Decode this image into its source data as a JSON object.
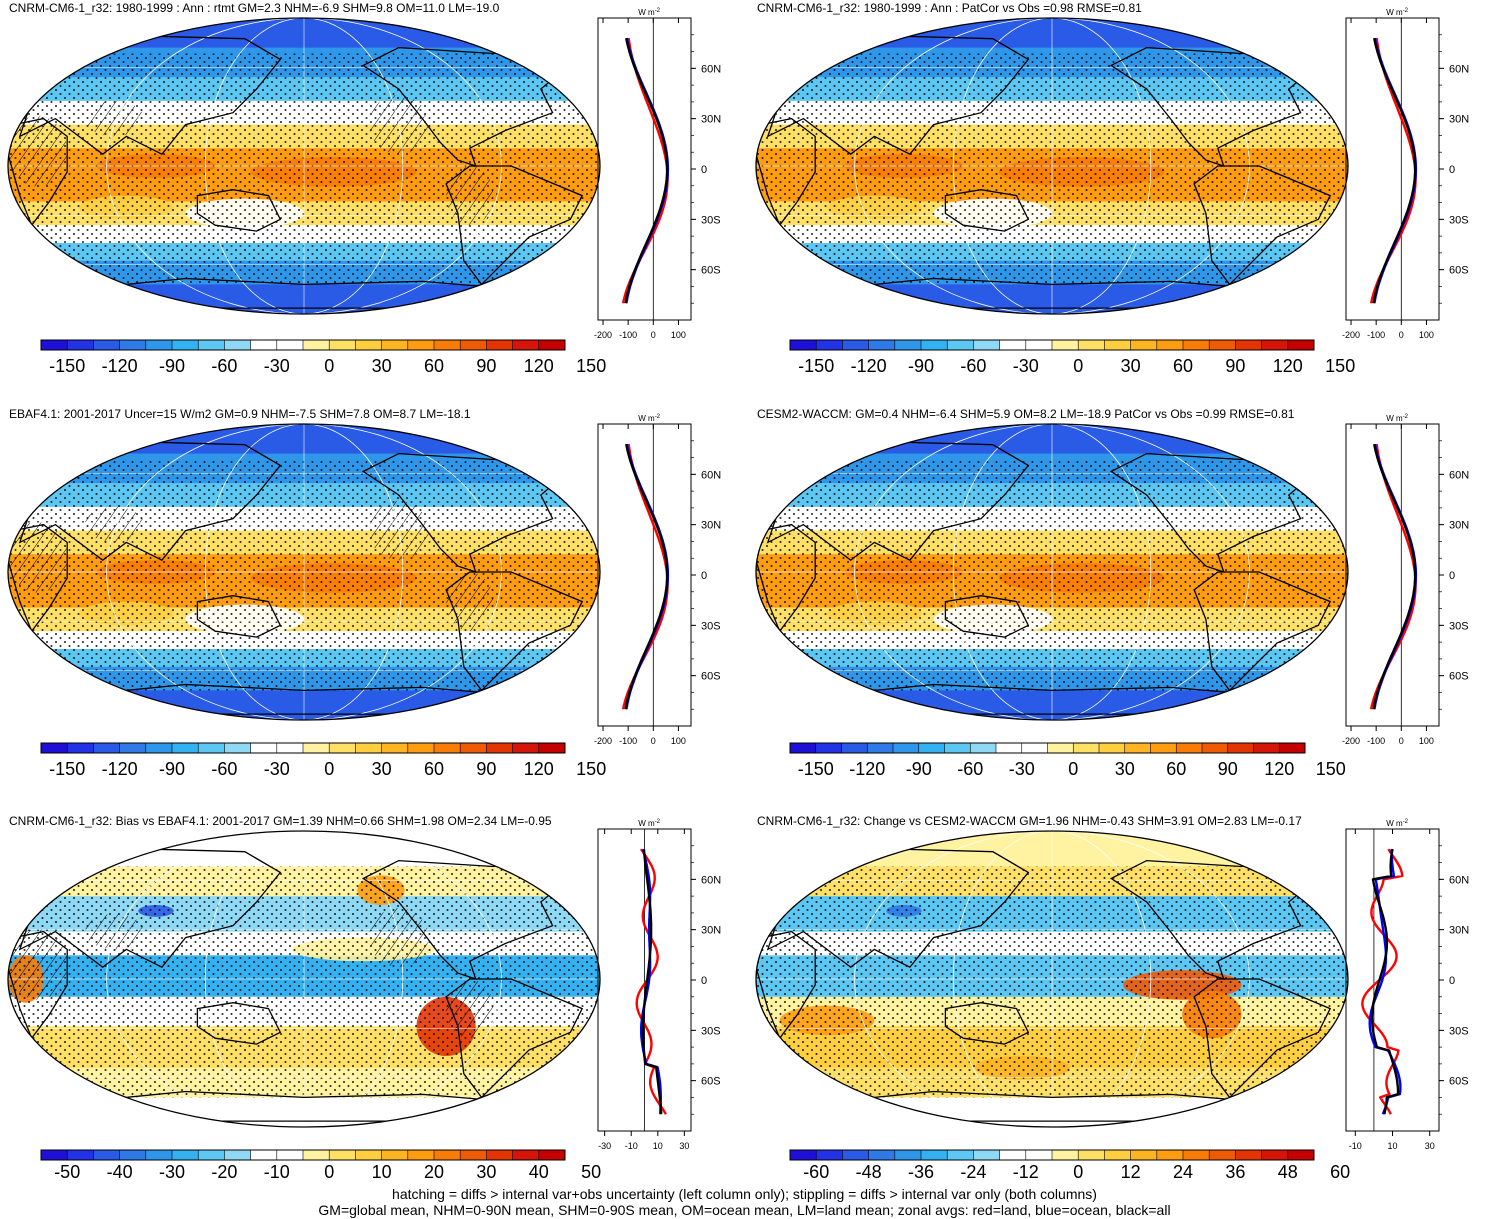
{
  "panels": [
    {
      "id": "p1",
      "title": "CNRM-CM6-1_r32: 1980-1999 : Ann : rtmt GM=2.3 NHM=-6.9 SHM=9.8 OM=11.0 LM=-19.0",
      "mode": "abs",
      "hatched": true,
      "colorbar_ticks": [
        "-150",
        "-120",
        "-90",
        "-60",
        "-30",
        "0",
        "30",
        "60",
        "90",
        "120",
        "150"
      ],
      "zonal_xticks": [
        "-200",
        "-100",
        "0",
        "100"
      ]
    },
    {
      "id": "p2",
      "title": "CNRM-CM6-1_r32: 1980-1999 : Ann : PatCor vs Obs =0.98 RMSE=0.81",
      "mode": "abs",
      "hatched": false,
      "colorbar_ticks": [
        "-150",
        "-120",
        "-90",
        "-60",
        "-30",
        "0",
        "30",
        "60",
        "90",
        "120",
        "150"
      ],
      "zonal_xticks": [
        "-200",
        "-100",
        "0",
        "100"
      ]
    },
    {
      "id": "p3",
      "title": "EBAF4.1: 2001-2017 Uncer=15 W/m2 GM=0.9 NHM=-7.5 SHM=7.8 OM=8.7 LM=-18.1",
      "mode": "abs",
      "hatched": true,
      "colorbar_ticks": [
        "-150",
        "-120",
        "-90",
        "-60",
        "-30",
        "0",
        "30",
        "60",
        "90",
        "120",
        "150"
      ],
      "zonal_xticks": [
        "-200",
        "-100",
        "0",
        "100"
      ]
    },
    {
      "id": "p4",
      "title": "CESM2-WACCM: GM=0.4 NHM=-6.4 SHM=5.9 OM=8.2 LM=-18.9 PatCor vs Obs =0.99 RMSE=0.81",
      "mode": "abs",
      "hatched": false,
      "colorbar_ticks": [
        "-150",
        "-120",
        "-90",
        "-60",
        "-30",
        "0",
        "30",
        "60",
        "90",
        "120",
        "150"
      ],
      "zonal_xticks": [
        "-200",
        "-100",
        "0",
        "100"
      ]
    },
    {
      "id": "p5",
      "title": "CNRM-CM6-1_r32: Bias vs EBAF4.1: 2001-2017 GM=1.39 NHM=0.66 SHM=1.98 OM=2.34 LM=-0.95",
      "mode": "bias",
      "hatched": true,
      "colorbar_ticks": [
        "-50",
        "-40",
        "-30",
        "-20",
        "-10",
        "0",
        "10",
        "20",
        "30",
        "40",
        "50"
      ],
      "zonal_xticks": [
        "-30",
        "-10",
        "10",
        "30"
      ]
    },
    {
      "id": "p6",
      "title": "CNRM-CM6-1_r32: Change vs CESM2-WACCM GM=1.96 NHM=-0.43 SHM=3.91 OM=2.83 LM=-0.17",
      "mode": "change",
      "hatched": false,
      "colorbar_ticks": [
        "-60",
        "-48",
        "-36",
        "-24",
        "-12",
        "0",
        "12",
        "24",
        "36",
        "48",
        "60"
      ],
      "zonal_xticks": [
        "-10",
        "10",
        "30"
      ]
    }
  ],
  "zonal_units": "W m",
  "zonal_units_exp": "-2",
  "lat_labels": [
    "60N",
    "30N",
    "0",
    "30S",
    "60S"
  ],
  "palette": [
    "#1f10d8",
    "#2233e6",
    "#2a5be6",
    "#2f7ae6",
    "#2f97ea",
    "#34b1f0",
    "#5cc7f3",
    "#8fd9f5",
    "#ffffff",
    "#ffffff",
    "#fff2a0",
    "#ffe066",
    "#ffcf40",
    "#ffb521",
    "#ff9c10",
    "#f87c06",
    "#ef5a05",
    "#e33504",
    "#d51507",
    "#c40000"
  ],
  "line_colors": {
    "land": "#ff0000",
    "ocean": "#0000ff",
    "all": "#000000"
  },
  "footer": {
    "line1": "hatching = diffs > internal var+obs uncertainty (left column only); stippling = diffs > internal var only (both columns)",
    "line2": "GM=global mean, NHM=0-90N mean, SHM=0-90S mean, OM=ocean mean, LM=land mean; zonal avgs: red=land, blue=ocean, black=all"
  }
}
